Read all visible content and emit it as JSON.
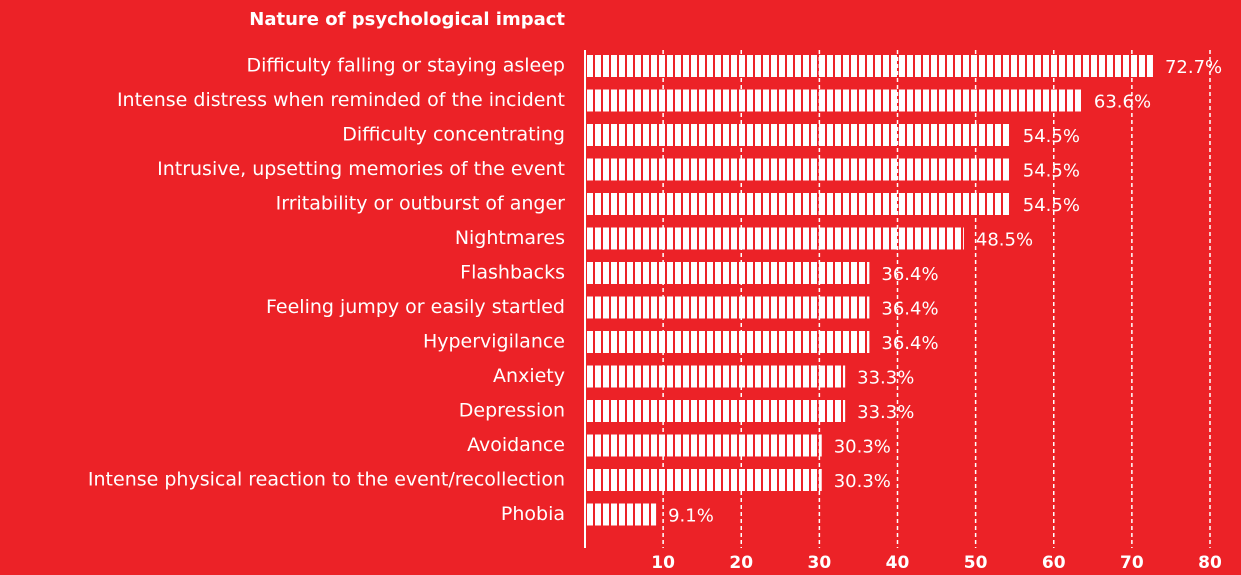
{
  "chart_data": {
    "type": "bar",
    "orientation": "horizontal",
    "title": "Nature of psychological impact",
    "categories": [
      "Difficulty falling or staying asleep",
      "Intense distress when reminded of the incident",
      "Difficulty concentrating",
      "Intrusive, upsetting memories of the event",
      "Irritability or outburst of anger",
      "Nightmares",
      "Flashbacks",
      "Feeling jumpy or easily startled",
      "Hypervigilance",
      "Anxiety",
      "Depression",
      "Avoidance",
      "Intense physical reaction to the event/recollection",
      "Phobia"
    ],
    "values": [
      72.7,
      63.6,
      54.5,
      54.5,
      54.5,
      48.5,
      36.4,
      36.4,
      36.4,
      33.3,
      33.3,
      30.3,
      30.3,
      9.1
    ],
    "value_labels": [
      "72.7%",
      "63.6%",
      "54.5%",
      "54.5%",
      "54.5%",
      "48.5%",
      "36.4%",
      "36.4%",
      "36.4%",
      "33.3%",
      "33.3%",
      "30.3%",
      "30.3%",
      "9.1%"
    ],
    "color": "#ffffff",
    "xlim": [
      0,
      80
    ],
    "xticks": [
      10,
      20,
      30,
      40,
      50,
      60,
      70,
      80
    ],
    "grid": true
  }
}
